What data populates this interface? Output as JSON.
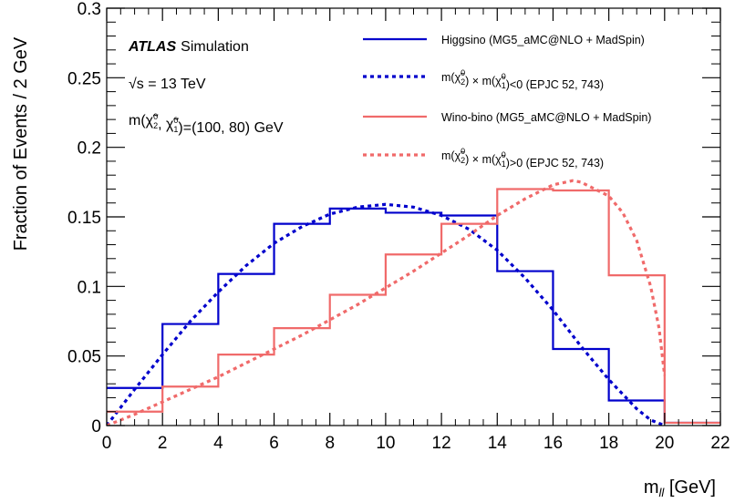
{
  "chart_data": {
    "type": "line",
    "xlabel": "m",
    "xlabel_sub": "ll",
    "xlabel_unit": " [GeV]",
    "ylabel": "Fraction of Events / 2 GeV",
    "xlim": [
      0,
      22
    ],
    "ylim": [
      0,
      0.3
    ],
    "x_ticks": [
      0,
      2,
      4,
      6,
      8,
      10,
      12,
      14,
      16,
      18,
      20,
      22
    ],
    "x_tick_labels": [
      "0",
      "2",
      "4",
      "6",
      "8",
      "10",
      "12",
      "14",
      "16",
      "18",
      "20",
      "22"
    ],
    "y_ticks": [
      0,
      0.05,
      0.1,
      0.15,
      0.2,
      0.25,
      0.3
    ],
    "y_tick_labels": [
      "0",
      "0.05",
      "0.1",
      "0.15",
      "0.2",
      "0.25",
      "0.3"
    ],
    "grid": false,
    "legend_position": "top-right",
    "annotations": {
      "experiment": "ATLAS",
      "status": "Simulation",
      "energy": "√s = 13 TeV",
      "mass_point": "m(χ̃₂⁰, χ̃₁⁰)=(100, 80) GeV"
    },
    "series": [
      {
        "name": "Higgsino (MG5_aMC@NLO + MadSpin)",
        "style": "histogram",
        "color": "#0000cc",
        "bin_edges": [
          0,
          2,
          4,
          6,
          8,
          10,
          12,
          14,
          16,
          18,
          20,
          22
        ],
        "values": [
          0.027,
          0.073,
          0.109,
          0.145,
          0.156,
          0.153,
          0.151,
          0.111,
          0.055,
          0.018,
          0.002
        ]
      },
      {
        "name": "m(χ̃₂⁰) × m(χ̃₁⁰)<0 (EPJC 52, 743)",
        "style": "dashed",
        "color": "#0000cc",
        "x": [
          0,
          1,
          2,
          3,
          4,
          5,
          6,
          7,
          8,
          9,
          10,
          11,
          12,
          13,
          14,
          15,
          16,
          17,
          18,
          19,
          19.5,
          20
        ],
        "y": [
          0,
          0.026,
          0.051,
          0.075,
          0.096,
          0.115,
          0.131,
          0.143,
          0.152,
          0.157,
          0.159,
          0.157,
          0.151,
          0.141,
          0.126,
          0.106,
          0.083,
          0.057,
          0.033,
          0.012,
          0.004,
          0
        ]
      },
      {
        "name": "Wino-bino (MG5_aMC@NLO + MadSpin)",
        "style": "histogram",
        "color": "#f06a6a",
        "bin_edges": [
          0,
          2,
          4,
          6,
          8,
          10,
          12,
          14,
          16,
          18,
          20,
          22
        ],
        "values": [
          0.01,
          0.028,
          0.051,
          0.07,
          0.094,
          0.123,
          0.145,
          0.17,
          0.169,
          0.108,
          0.002
        ]
      },
      {
        "name": "m(χ̃₂⁰) × m(χ̃₁⁰)>0 (EPJC 52, 743)",
        "style": "dashed",
        "color": "#f06a6a",
        "x": [
          0,
          1,
          2,
          3,
          4,
          5,
          6,
          7,
          8,
          9,
          10,
          11,
          12,
          13,
          14,
          15,
          16,
          16.7,
          17,
          18,
          18.5,
          19,
          19.5,
          19.8,
          20
        ],
        "y": [
          0,
          0.008,
          0.017,
          0.026,
          0.035,
          0.045,
          0.055,
          0.065,
          0.076,
          0.087,
          0.099,
          0.111,
          0.124,
          0.137,
          0.151,
          0.163,
          0.173,
          0.176,
          0.175,
          0.165,
          0.153,
          0.133,
          0.1,
          0.07,
          0.036
        ]
      }
    ]
  }
}
